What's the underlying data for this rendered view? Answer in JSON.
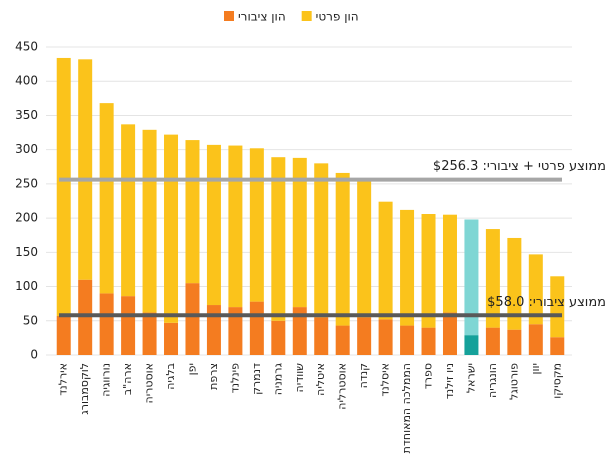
{
  "chart_data": {
    "type": "stacked_bar",
    "categories": [
      "אירלנד",
      "לוקסמבורג",
      "נורווגיה",
      "ארה\"ב",
      "אוסטריה",
      "בלגיה",
      "יפן",
      "צרפת",
      "פינלנד",
      "דנמרק",
      "גרמניה",
      "שוודיה",
      "איטליה",
      "אוסטרליה",
      "קנדה",
      "איסלנד",
      "הממלכה המאוחדת",
      "ספרד",
      "ניו זילנד",
      "ישראל",
      "הונגריה",
      "פורטוגל",
      "יוון",
      "מקסיקו"
    ],
    "series": [
      {
        "name": "הון ציבורי",
        "color": "#f47c20",
        "highlight_color": "#15a19a",
        "values": [
          57,
          110,
          90,
          86,
          62,
          47,
          105,
          73,
          70,
          78,
          50,
          70,
          55,
          43,
          55,
          52,
          43,
          40,
          62,
          29,
          40,
          37,
          45,
          26
        ]
      },
      {
        "name": "הון פרטי",
        "color": "#fbc31b",
        "highlight_color": "#7fd6d4",
        "values": [
          377,
          322,
          278,
          251,
          267,
          275,
          209,
          234,
          236,
          224,
          239,
          218,
          225,
          223,
          202,
          172,
          169,
          166,
          143,
          169,
          144,
          134,
          102,
          89
        ]
      }
    ],
    "highlight_index": 19,
    "ylim": [
      0,
      450
    ],
    "yticks": [
      0,
      50,
      100,
      150,
      200,
      250,
      300,
      350,
      400,
      450
    ],
    "grid": true,
    "reference_lines": [
      {
        "label": "ממוצע פרטי + ציבורי: $256.3",
        "value": 256.3,
        "color": "#a6a6a6"
      },
      {
        "label": "ממוצע ציבורי: $58.0",
        "value": 58.0,
        "color": "#595959"
      }
    ],
    "legend": "top"
  }
}
